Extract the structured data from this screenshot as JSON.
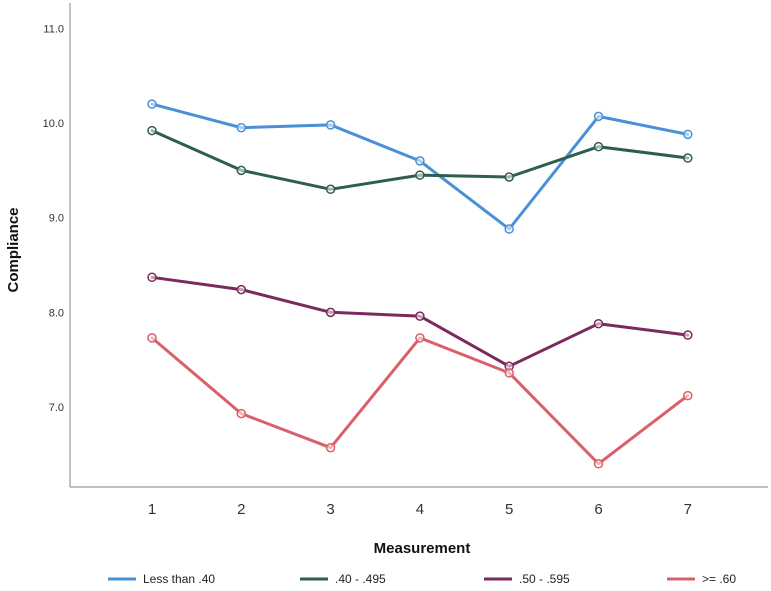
{
  "chart_data": {
    "type": "line",
    "title": "",
    "xlabel": "Measurement",
    "ylabel": "Compliance",
    "x": [
      "1",
      "2",
      "3",
      "4",
      "5",
      "6",
      "7"
    ],
    "y_ticks": [
      "11.0",
      "10.0",
      "9.0",
      "8.0",
      "7.0"
    ],
    "ylim": [
      6.2,
      11.3
    ],
    "grid": false,
    "legend_position": "bottom",
    "series": [
      {
        "name": "Less than .40",
        "color": "#4a90d9",
        "values": [
          10.2,
          9.95,
          9.98,
          9.6,
          8.88,
          10.07,
          9.88
        ]
      },
      {
        "name": ".40 - .495",
        "color": "#2e5e4e",
        "values": [
          9.92,
          9.5,
          9.3,
          9.45,
          9.43,
          9.75,
          9.63
        ]
      },
      {
        "name": ".50 - .595",
        "color": "#7a2a5c",
        "values": [
          8.37,
          8.24,
          8.0,
          7.96,
          7.43,
          7.88,
          7.76
        ]
      },
      {
        "name": ">= .60",
        "color": "#d9606a",
        "values": [
          7.73,
          6.93,
          6.57,
          7.73,
          7.36,
          6.4,
          7.12
        ]
      }
    ]
  }
}
